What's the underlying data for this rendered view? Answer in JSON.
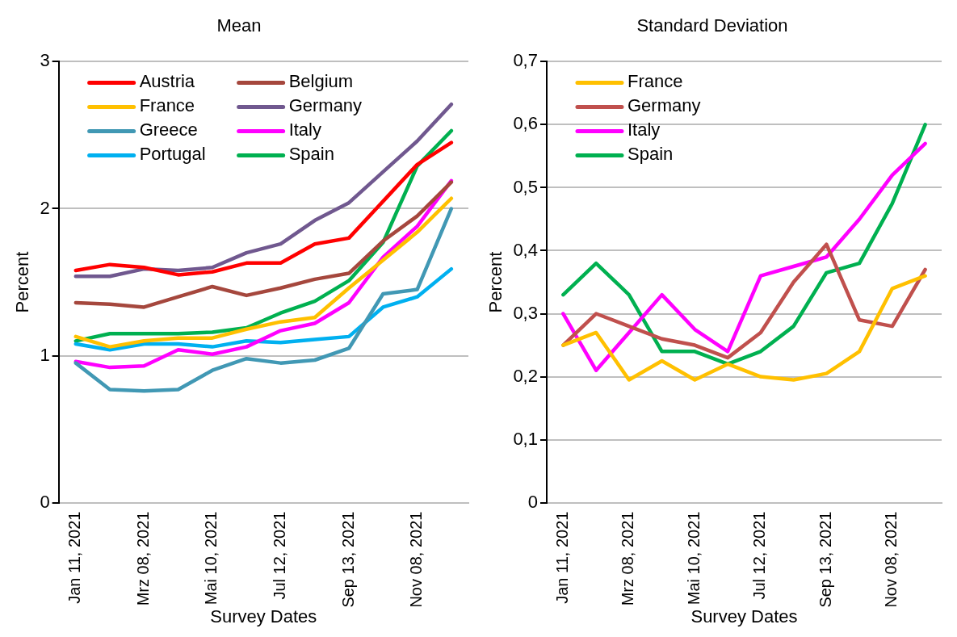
{
  "chart_data": [
    {
      "type": "line",
      "title": "Mean",
      "xlabel": "Survey Dates",
      "ylabel": "Percent",
      "categories": [
        "Jan 11, 2021",
        null,
        "Mrz 08, 2021",
        null,
        "Mai 10, 2021",
        null,
        "Jul 12, 2021",
        null,
        "Sep 13, 2021",
        null,
        "Nov 08, 2021",
        null
      ],
      "ylim": [
        0,
        3
      ],
      "yticks": [
        0,
        1,
        2,
        3
      ],
      "grid": "y",
      "legend": "top left",
      "marker": "none",
      "line_style": "solid",
      "series": [
        {
          "name": "Austria",
          "color": "#ff0000",
          "values": [
            1.58,
            1.62,
            1.6,
            1.55,
            1.57,
            1.63,
            1.63,
            1.76,
            1.8,
            2.05,
            2.3,
            2.45
          ]
        },
        {
          "name": "Belgium",
          "color": "#a5473d",
          "values": [
            1.36,
            1.35,
            1.33,
            1.4,
            1.47,
            1.41,
            1.46,
            1.52,
            1.56,
            1.78,
            1.95,
            2.18
          ]
        },
        {
          "name": "France",
          "color": "#ffc000",
          "values": [
            1.13,
            1.06,
            1.1,
            1.12,
            1.12,
            1.18,
            1.23,
            1.26,
            1.46,
            1.65,
            1.84,
            2.07
          ]
        },
        {
          "name": "Germany",
          "color": "#70588f",
          "values": [
            1.54,
            1.54,
            1.59,
            1.58,
            1.6,
            1.7,
            1.76,
            1.92,
            2.04,
            2.25,
            2.46,
            2.71
          ]
        },
        {
          "name": "Greece",
          "color": "#4198b4",
          "values": [
            0.95,
            0.77,
            0.76,
            0.77,
            0.9,
            0.98,
            0.95,
            0.97,
            1.05,
            1.42,
            1.45,
            2.0
          ]
        },
        {
          "name": "Italy",
          "color": "#ff00ff",
          "values": [
            0.96,
            0.92,
            0.93,
            1.04,
            1.01,
            1.06,
            1.17,
            1.22,
            1.36,
            1.67,
            1.88,
            2.19
          ]
        },
        {
          "name": "Portugal",
          "color": "#00b0f0",
          "values": [
            1.08,
            1.04,
            1.08,
            1.08,
            1.06,
            1.1,
            1.09,
            1.11,
            1.13,
            1.33,
            1.4,
            1.59
          ]
        },
        {
          "name": "Spain",
          "color": "#00b050",
          "values": [
            1.1,
            1.15,
            1.15,
            1.15,
            1.16,
            1.19,
            1.29,
            1.37,
            1.51,
            1.77,
            2.29,
            2.53
          ]
        }
      ]
    },
    {
      "type": "line",
      "title": "Standard Deviation",
      "xlabel": "Survey Dates",
      "ylabel": "Percent",
      "categories": [
        "Jan 11, 2021",
        null,
        "Mrz 08, 2021",
        null,
        "Mai 10, 2021",
        null,
        "Jul 12, 2021",
        null,
        "Sep 13, 2021",
        null,
        "Nov 08, 2021",
        null
      ],
      "ylim": [
        0,
        0.7
      ],
      "yticks": [
        {
          "value": 0,
          "label": "0"
        },
        {
          "value": 0.1,
          "label": "0,1"
        },
        {
          "value": 0.2,
          "label": "0,2"
        },
        {
          "value": 0.3,
          "label": "0,3"
        },
        {
          "value": 0.4,
          "label": "0,4"
        },
        {
          "value": 0.5,
          "label": "0,5"
        },
        {
          "value": 0.6,
          "label": "0,6"
        },
        {
          "value": 0.7,
          "label": "0,7"
        }
      ],
      "grid": "y",
      "legend": "top left",
      "marker": "none",
      "line_style": "solid",
      "series": [
        {
          "name": "France",
          "color": "#ffc000",
          "values": [
            0.25,
            0.27,
            0.195,
            0.225,
            0.195,
            0.22,
            0.2,
            0.195,
            0.205,
            0.24,
            0.34,
            0.36
          ]
        },
        {
          "name": "Germany",
          "color": "#c0504d",
          "values": [
            0.25,
            0.3,
            0.28,
            0.26,
            0.25,
            0.23,
            0.27,
            0.35,
            0.41,
            0.29,
            0.28,
            0.37
          ]
        },
        {
          "name": "Italy",
          "color": "#ff00ff",
          "values": [
            0.3,
            0.21,
            0.27,
            0.33,
            0.275,
            0.24,
            0.36,
            0.375,
            0.39,
            0.45,
            0.52,
            0.57
          ]
        },
        {
          "name": "Spain",
          "color": "#00b050",
          "values": [
            0.33,
            0.38,
            0.33,
            0.24,
            0.24,
            0.22,
            0.24,
            0.28,
            0.365,
            0.38,
            0.475,
            0.6
          ]
        }
      ]
    }
  ]
}
